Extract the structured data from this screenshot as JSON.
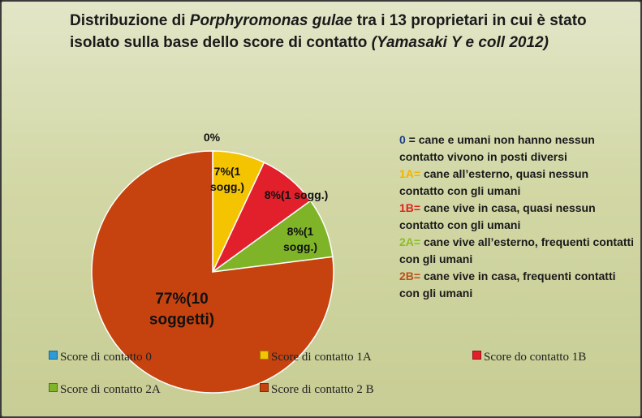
{
  "title": {
    "part1": "Distribuzione  di ",
    "italic1": "Porphyromonas gulae",
    "part2": " tra i 13 proprietari  in cui è stato isolato sulla base dello score di contatto ",
    "italic2": "(Yamasaki Y e coll 2012)"
  },
  "chart_data": {
    "type": "pie",
    "slices": [
      {
        "label": "Score di contatto 0",
        "value": 0,
        "data_label": "0%",
        "color": "#2e9bd6"
      },
      {
        "label": "Score di contatto 1A",
        "value": 7,
        "data_label": "7%(1 sogg.)",
        "color": "#f5c400"
      },
      {
        "label": "Score do contatto 1B",
        "value": 8,
        "data_label": "8%(1 sogg.)",
        "color": "#e2202b"
      },
      {
        "label": "Score di contatto 2A",
        "value": 8,
        "data_label": "8%(1 sogg.)",
        "color": "#7fb428"
      },
      {
        "label": "Score di contatto 2 B",
        "value": 77,
        "data_label": "77%(10 soggetti)",
        "color": "#c6430f"
      }
    ],
    "legend_position": "bottom"
  },
  "notes": [
    {
      "code": "0",
      "sep": "   =   ",
      "text": "cane e umani  non hanno nessun contatto vivono in posti diversi",
      "color": "#1f3c88"
    },
    {
      "code": "1A=",
      "sep": "    ",
      "text": "cane all’esterno, quasi nessun contatto con gli umani",
      "color": "#f2b400"
    },
    {
      "code": "1B=",
      "sep": " ",
      "text": "cane vive  in casa, quasi nessun contatto con gli umani",
      "color": "#d9251d"
    },
    {
      "code": "2A=",
      "sep": "  ",
      "text": "cane vive all’esterno, frequenti contatti con gli umani",
      "color": "#8bbd2b"
    },
    {
      "code": "2B=",
      "sep": "  ",
      "text": "cane vive in casa, frequenti contatti con gli umani",
      "color": "#b8501e"
    }
  ]
}
